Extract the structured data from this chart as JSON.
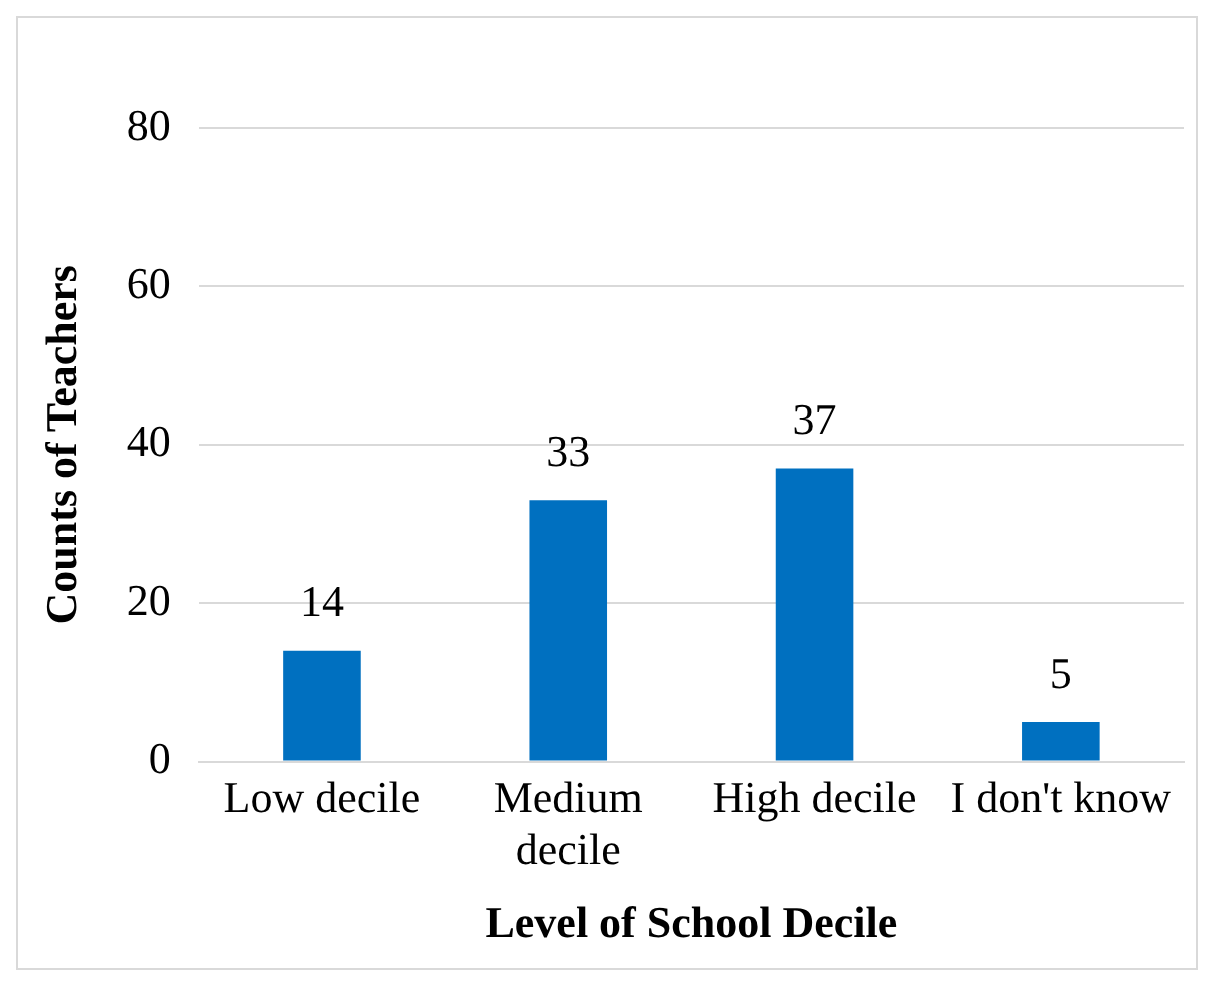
{
  "chart_data": {
    "type": "bar",
    "xlabel": "Level of School Decile",
    "ylabel": "Counts of Teachers",
    "categories": [
      "Low decile",
      "Medium decile",
      "High decile",
      "I don't know"
    ],
    "values": [
      14,
      33,
      37,
      5
    ],
    "color": "#0070c0",
    "ylim": [
      0,
      80
    ],
    "yticks": [
      0,
      20,
      40,
      60,
      80
    ],
    "grid": "y",
    "data_labels": true,
    "legend": false
  }
}
